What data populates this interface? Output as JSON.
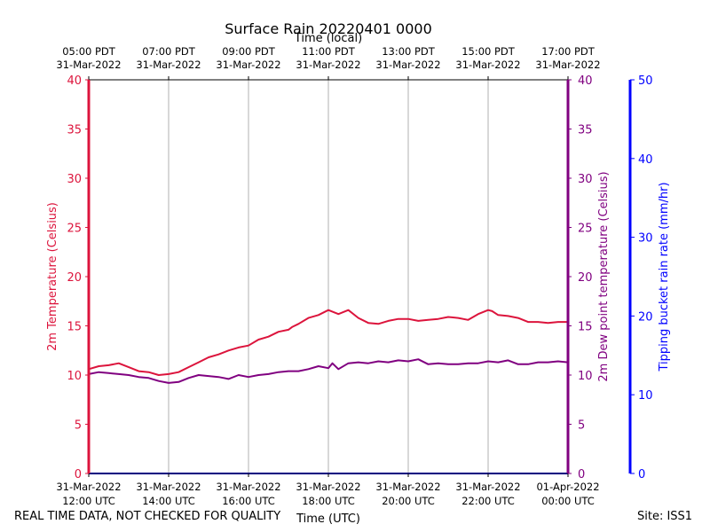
{
  "chart_data": {
    "type": "line",
    "title": "Surface Rain 20220401 0000",
    "top_axis_label": "Time (local)",
    "xlabel": "Time (UTC)",
    "x_ticks_utc": [
      [
        "31-Mar-2022",
        "12:00 UTC"
      ],
      [
        "31-Mar-2022",
        "14:00 UTC"
      ],
      [
        "31-Mar-2022",
        "16:00 UTC"
      ],
      [
        "31-Mar-2022",
        "18:00 UTC"
      ],
      [
        "31-Mar-2022",
        "20:00 UTC"
      ],
      [
        "31-Mar-2022",
        "22:00 UTC"
      ],
      [
        "01-Apr-2022",
        "00:00 UTC"
      ]
    ],
    "x_ticks_local": [
      [
        "05:00 PDT",
        "31-Mar-2022"
      ],
      [
        "07:00 PDT",
        "31-Mar-2022"
      ],
      [
        "09:00 PDT",
        "31-Mar-2022"
      ],
      [
        "11:00 PDT",
        "31-Mar-2022"
      ],
      [
        "13:00 PDT",
        "31-Mar-2022"
      ],
      [
        "15:00 PDT",
        "31-Mar-2022"
      ],
      [
        "17:00 PDT",
        "31-Mar-2022"
      ]
    ],
    "x_range_hours": [
      0,
      12
    ],
    "grid_x": true,
    "axes": {
      "temperature": {
        "label": "2m Temperature (Celsius)",
        "color": "#dc143c",
        "ylim": [
          0,
          40
        ],
        "ticks": [
          "0",
          "5",
          "10",
          "15",
          "20",
          "25",
          "30",
          "35",
          "40"
        ]
      },
      "dewpoint": {
        "label": "2m Dew point temperature (Celsius)",
        "color": "#800080",
        "ylim": [
          0,
          40
        ],
        "ticks": [
          "0",
          "5",
          "10",
          "15",
          "20",
          "25",
          "30",
          "35",
          "40"
        ]
      },
      "rain": {
        "label": "Tipping bucket rain rate (mm/hr)",
        "color": "#0000ff",
        "ylim": [
          0,
          50
        ],
        "ticks": [
          "0",
          "10",
          "20",
          "30",
          "40",
          "50"
        ]
      }
    },
    "series": [
      {
        "name": "2m Temperature",
        "axis": "temperature",
        "color": "#dc143c",
        "x": [
          0,
          0.25,
          0.5,
          0.75,
          1,
          1.25,
          1.5,
          1.75,
          2,
          2.25,
          2.5,
          2.75,
          3,
          3.25,
          3.5,
          3.75,
          4,
          4.25,
          4.5,
          4.75,
          5,
          5.1,
          5.25,
          5.5,
          5.75,
          6,
          6.25,
          6.5,
          6.75,
          7,
          7.25,
          7.5,
          7.75,
          8,
          8.25,
          8.5,
          8.75,
          9,
          9.25,
          9.5,
          9.75,
          10,
          10.1,
          10.25,
          10.5,
          10.75,
          11,
          11.25,
          11.5,
          11.75,
          12
        ],
        "values": [
          10.6,
          10.9,
          11.0,
          11.2,
          10.8,
          10.4,
          10.3,
          10.0,
          10.1,
          10.3,
          10.8,
          11.3,
          11.8,
          12.1,
          12.5,
          12.8,
          13.0,
          13.6,
          13.9,
          14.4,
          14.6,
          14.9,
          15.2,
          15.8,
          16.1,
          16.6,
          16.2,
          16.6,
          15.8,
          15.3,
          15.2,
          15.5,
          15.7,
          15.7,
          15.5,
          15.6,
          15.7,
          15.9,
          15.8,
          15.6,
          16.2,
          16.6,
          16.5,
          16.1,
          16.0,
          15.8,
          15.4,
          15.4,
          15.3,
          15.4,
          15.4
        ]
      },
      {
        "name": "2m Dew point temperature",
        "axis": "dewpoint",
        "color": "#800080",
        "x": [
          0,
          0.25,
          0.5,
          0.75,
          1,
          1.25,
          1.5,
          1.75,
          2,
          2.25,
          2.5,
          2.75,
          3,
          3.25,
          3.5,
          3.75,
          4,
          4.25,
          4.5,
          4.75,
          5,
          5.25,
          5.5,
          5.75,
          6,
          6.1,
          6.25,
          6.5,
          6.75,
          7,
          7.25,
          7.5,
          7.75,
          8,
          8.25,
          8.5,
          8.75,
          9,
          9.25,
          9.5,
          9.75,
          10,
          10.25,
          10.5,
          10.75,
          11,
          11.25,
          11.5,
          11.75,
          12
        ],
        "values": [
          10.1,
          10.3,
          10.2,
          10.1,
          10.0,
          9.8,
          9.7,
          9.4,
          9.2,
          9.3,
          9.7,
          10.0,
          9.9,
          9.8,
          9.6,
          10.0,
          9.8,
          10.0,
          10.1,
          10.3,
          10.4,
          10.4,
          10.6,
          10.9,
          10.7,
          11.2,
          10.6,
          11.2,
          11.3,
          11.2,
          11.4,
          11.3,
          11.5,
          11.4,
          11.6,
          11.1,
          11.2,
          11.1,
          11.1,
          11.2,
          11.2,
          11.4,
          11.3,
          11.5,
          11.1,
          11.1,
          11.3,
          11.3,
          11.4,
          11.3
        ]
      },
      {
        "name": "Tipping bucket rain rate",
        "axis": "rain",
        "color": "#0000ff",
        "x": [
          0,
          12
        ],
        "values": [
          0,
          0
        ]
      }
    ]
  },
  "footer": {
    "disclaimer": "REAL TIME DATA, NOT CHECKED FOR QUALITY",
    "site": "Site: ISS1"
  }
}
